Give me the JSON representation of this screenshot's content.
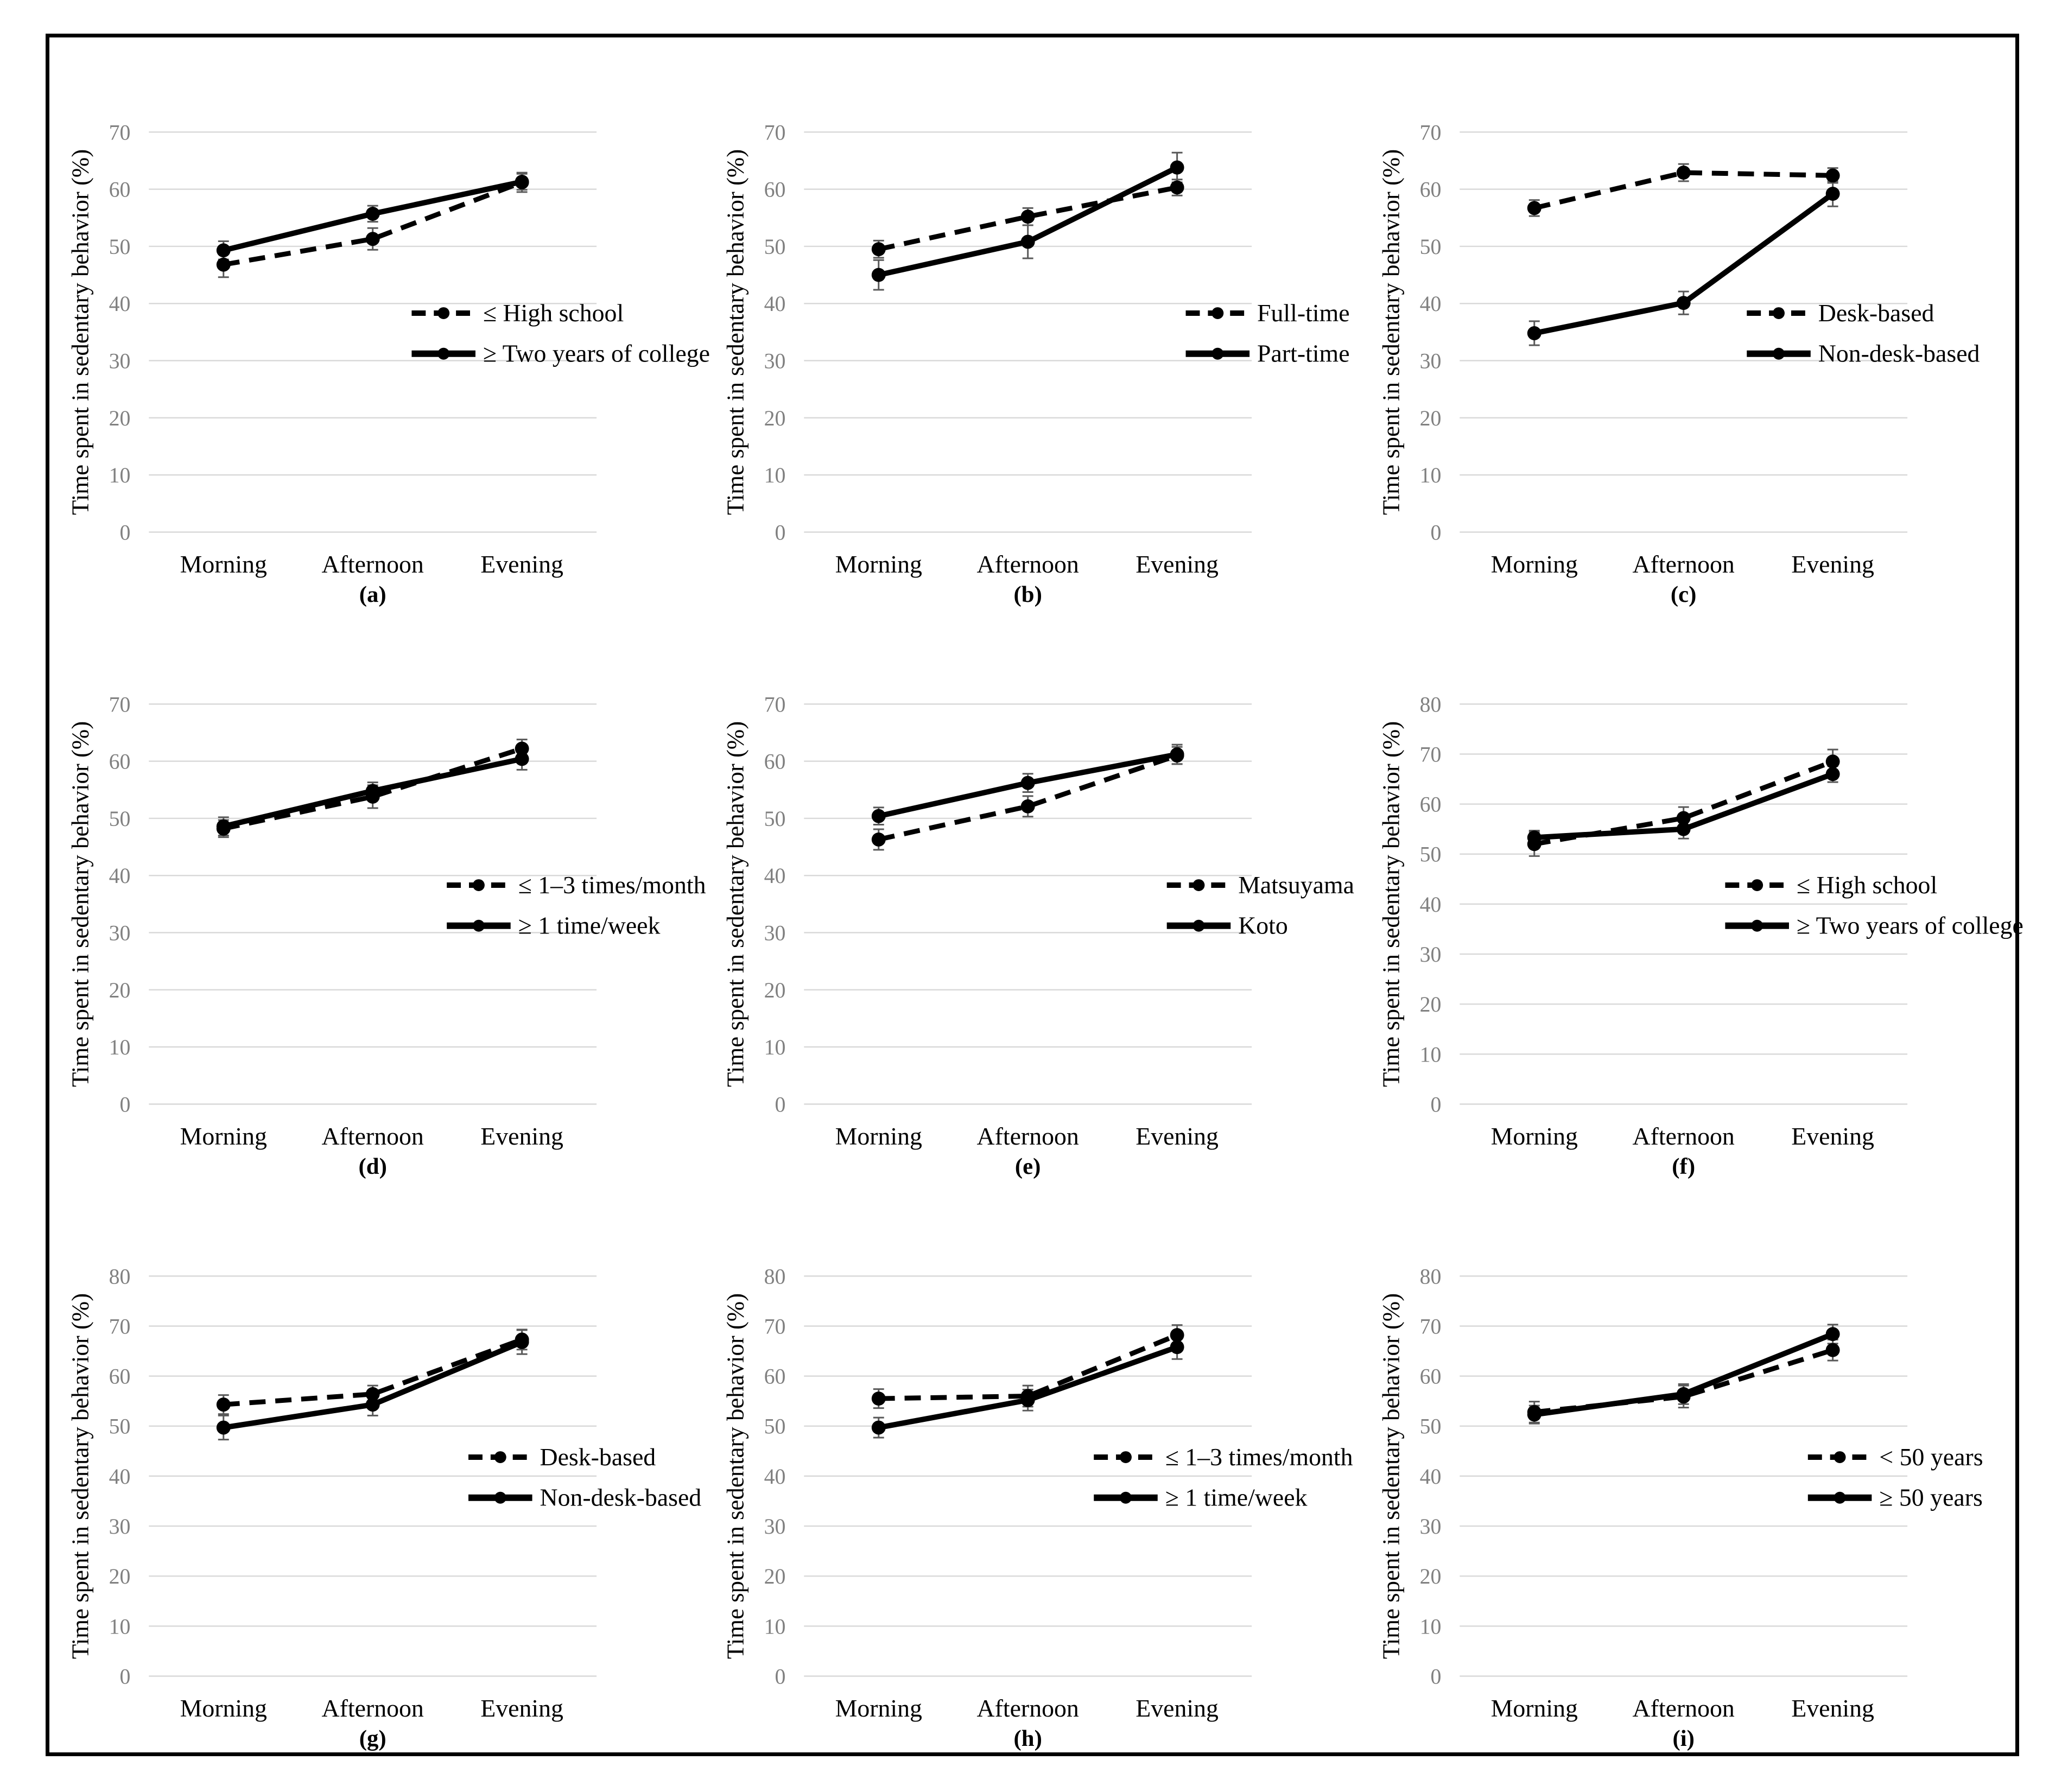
{
  "figure": {
    "background": "#ffffff",
    "border_color": "#000000",
    "series_color": "#000000",
    "gridline_color": "#d9d9d9",
    "tick_label_color": "#808080",
    "error_bar_color": "#595959"
  },
  "chart_data": [
    {
      "id": "a",
      "type": "line",
      "caption": "(a)",
      "ylabel": "Time spent in sedentary behavior (%)",
      "categories": [
        "Morning",
        "Afternoon",
        "Evening"
      ],
      "ylim": [
        0,
        70
      ],
      "yticks": [
        70,
        60,
        50,
        40,
        30,
        20,
        10,
        0
      ],
      "grid": true,
      "legend_position": "inside-right",
      "legend_x": 670,
      "series": [
        {
          "name": "≤ High school",
          "line": "dashed",
          "values": [
            46.8,
            51.3,
            61.2
          ],
          "errors": [
            2.2,
            1.9,
            1.7
          ]
        },
        {
          "name": "≥ Two years of college",
          "line": "solid",
          "values": [
            49.3,
            55.7,
            61.3
          ],
          "errors": [
            1.6,
            1.4,
            1.4
          ]
        }
      ]
    },
    {
      "id": "b",
      "type": "line",
      "caption": "(b)",
      "ylabel": "Time spent in sedentary behavior (%)",
      "categories": [
        "Morning",
        "Afternoon",
        "Evening"
      ],
      "ylim": [
        0,
        70
      ],
      "yticks": [
        70,
        60,
        50,
        40,
        30,
        20,
        10,
        0
      ],
      "grid": true,
      "legend_position": "inside-right",
      "legend_x": 890,
      "series": [
        {
          "name": "Full-time",
          "line": "dashed",
          "values": [
            49.5,
            55.2,
            60.3
          ],
          "errors": [
            1.5,
            1.5,
            1.4
          ]
        },
        {
          "name": "Part-time",
          "line": "solid",
          "values": [
            45.0,
            50.8,
            63.8
          ],
          "errors": [
            2.6,
            2.9,
            2.6
          ]
        }
      ]
    },
    {
      "id": "c",
      "type": "line",
      "caption": "(c)",
      "ylabel": "Time spent in sedentary behavior (%)",
      "categories": [
        "Morning",
        "Afternoon",
        "Evening"
      ],
      "ylim": [
        0,
        70
      ],
      "yticks": [
        70,
        60,
        50,
        40,
        30,
        20,
        10,
        0
      ],
      "grid": true,
      "legend_position": "inside-right",
      "legend_x": 715,
      "series": [
        {
          "name": "Desk-based",
          "line": "dashed",
          "values": [
            56.7,
            62.9,
            62.4
          ],
          "errors": [
            1.4,
            1.5,
            1.3
          ]
        },
        {
          "name": "Non-desk-based",
          "line": "solid",
          "values": [
            34.8,
            40.1,
            59.2
          ],
          "errors": [
            2.1,
            2.0,
            2.2
          ]
        }
      ]
    },
    {
      "id": "d",
      "type": "line",
      "caption": "(d)",
      "ylabel": "Time spent in sedentary behavior (%)",
      "categories": [
        "Morning",
        "Afternoon",
        "Evening"
      ],
      "ylim": [
        0,
        70
      ],
      "yticks": [
        70,
        60,
        50,
        40,
        30,
        20,
        10,
        0
      ],
      "grid": true,
      "legend_position": "inside-right",
      "legend_x": 735,
      "series": [
        {
          "name": "≤ 1–3 times/month",
          "line": "dashed",
          "values": [
            48.2,
            53.8,
            62.2
          ],
          "errors": [
            1.5,
            2.0,
            1.6
          ]
        },
        {
          "name": "≥ 1 time/week",
          "line": "solid",
          "values": [
            48.6,
            54.8,
            60.4
          ],
          "errors": [
            1.6,
            1.5,
            1.9
          ]
        }
      ]
    },
    {
      "id": "e",
      "type": "line",
      "caption": "(e)",
      "ylabel": "Time spent in sedentary behavior (%)",
      "categories": [
        "Morning",
        "Afternoon",
        "Evening"
      ],
      "ylim": [
        0,
        70
      ],
      "yticks": [
        70,
        60,
        50,
        40,
        30,
        20,
        10,
        0
      ],
      "grid": true,
      "legend_position": "inside-right",
      "legend_x": 855,
      "series": [
        {
          "name": "Matsuyama",
          "line": "dashed",
          "values": [
            46.3,
            52.1,
            61.0
          ],
          "errors": [
            1.8,
            1.8,
            1.5
          ]
        },
        {
          "name": "Koto",
          "line": "solid",
          "values": [
            50.4,
            56.2,
            61.2
          ],
          "errors": [
            1.5,
            1.6,
            1.7
          ]
        }
      ]
    },
    {
      "id": "f",
      "type": "line",
      "caption": "(f)",
      "ylabel": "Time spent in sedentary behavior (%)",
      "categories": [
        "Morning",
        "Afternoon",
        "Evening"
      ],
      "ylim": [
        0,
        80
      ],
      "yticks": [
        80,
        70,
        60,
        50,
        40,
        30,
        20,
        10,
        0
      ],
      "grid": true,
      "legend_position": "inside-right",
      "legend_x": 675,
      "series": [
        {
          "name": "≤ High school",
          "line": "dashed",
          "values": [
            52.0,
            57.2,
            68.5
          ],
          "errors": [
            2.4,
            2.2,
            2.4
          ]
        },
        {
          "name": "≥ Two years of college",
          "line": "solid",
          "values": [
            53.3,
            55.0,
            66.0
          ],
          "errors": [
            1.4,
            1.9,
            1.6
          ]
        }
      ]
    },
    {
      "id": "g",
      "type": "line",
      "caption": "(g)",
      "ylabel": "Time spent in sedentary behavior (%)",
      "categories": [
        "Morning",
        "Afternoon",
        "Evening"
      ],
      "ylim": [
        0,
        80
      ],
      "yticks": [
        80,
        70,
        60,
        50,
        40,
        30,
        20,
        10,
        0
      ],
      "grid": true,
      "legend_position": "inside-right",
      "legend_x": 775,
      "series": [
        {
          "name": "Desk-based",
          "line": "dashed",
          "values": [
            54.3,
            56.4,
            67.3
          ],
          "errors": [
            1.9,
            1.7,
            2.0
          ]
        },
        {
          "name": "Non-desk-based",
          "line": "solid",
          "values": [
            49.7,
            54.3,
            66.8
          ],
          "errors": [
            2.4,
            2.2,
            2.4
          ]
        }
      ]
    },
    {
      "id": "h",
      "type": "line",
      "caption": "(h)",
      "ylabel": "Time spent in sedentary behavior (%)",
      "categories": [
        "Morning",
        "Afternoon",
        "Evening"
      ],
      "ylim": [
        0,
        80
      ],
      "yticks": [
        80,
        70,
        60,
        50,
        40,
        30,
        20,
        10,
        0
      ],
      "grid": true,
      "legend_position": "inside-right",
      "legend_x": 720,
      "series": [
        {
          "name": "≤ 1–3 times/month",
          "line": "dashed",
          "values": [
            55.5,
            56.0,
            68.2
          ],
          "errors": [
            1.9,
            2.1,
            2.0
          ]
        },
        {
          "name": "≥ 1 time/week",
          "line": "solid",
          "values": [
            49.7,
            55.2,
            65.8
          ],
          "errors": [
            2.0,
            2.1,
            2.4
          ]
        }
      ]
    },
    {
      "id": "i",
      "type": "line",
      "caption": "(i)",
      "ylabel": "Time spent in sedentary behavior (%)",
      "categories": [
        "Morning",
        "Afternoon",
        "Evening"
      ],
      "ylim": [
        0,
        80
      ],
      "yticks": [
        80,
        70,
        60,
        50,
        40,
        30,
        20,
        10,
        0
      ],
      "grid": true,
      "legend_position": "inside-right",
      "legend_x": 828,
      "series": [
        {
          "name": "< 50 years",
          "line": "dashed",
          "values": [
            52.8,
            55.9,
            65.2
          ],
          "errors": [
            2.1,
            2.2,
            2.1
          ]
        },
        {
          "name": "≥ 50 years",
          "line": "solid",
          "values": [
            52.3,
            56.4,
            68.4
          ],
          "errors": [
            1.8,
            2.0,
            1.9
          ]
        }
      ]
    }
  ]
}
